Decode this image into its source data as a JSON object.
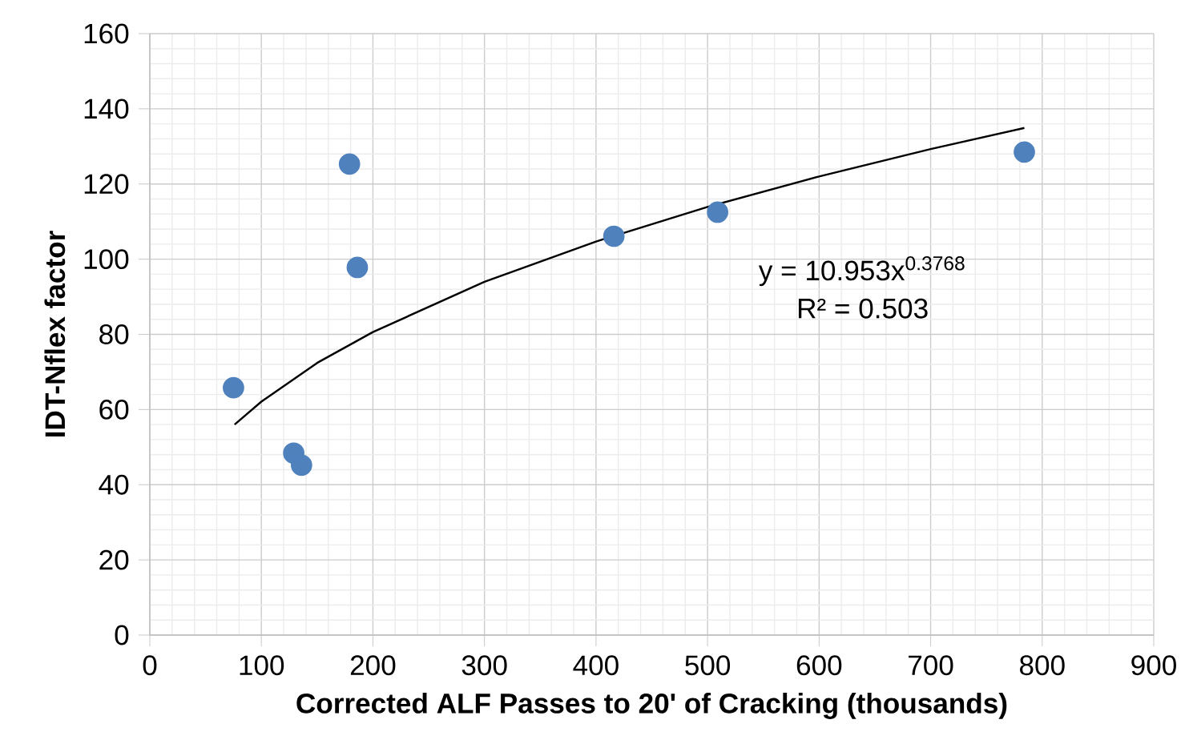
{
  "chart_data": {
    "type": "scatter",
    "xlabel": "Corrected ALF Passes to 20' of Cracking (thousands)",
    "ylabel": "IDT-Nflex factor",
    "xlim": [
      0,
      900
    ],
    "ylim": [
      0,
      160
    ],
    "xticks": [
      0,
      100,
      200,
      300,
      400,
      500,
      600,
      700,
      800,
      900
    ],
    "yticks": [
      0,
      20,
      40,
      60,
      80,
      100,
      120,
      140,
      160
    ],
    "grid": true,
    "marker": "circle",
    "annotations": [
      "y = 10.953x$^{0.3768}$",
      "R² = 0.503"
    ],
    "series": [
      {
        "color": "#4f81bd",
        "x": [
          75,
          129,
          136,
          179,
          186,
          416,
          509,
          784
        ],
        "values": [
          65.8,
          48.4,
          45.2,
          125.3,
          97.8,
          106.1,
          112.5,
          128.5
        ]
      },
      {
        "type": "line",
        "color": "#000000",
        "marker": "none",
        "line_style": "solid",
        "x": [
          76,
          100,
          150,
          200,
          300,
          400,
          500,
          600,
          700,
          784
        ],
        "values": [
          56.0,
          62.1,
          72.4,
          80.6,
          94.0,
          104.7,
          113.9,
          122.0,
          129.3,
          134.9
        ]
      }
    ]
  }
}
